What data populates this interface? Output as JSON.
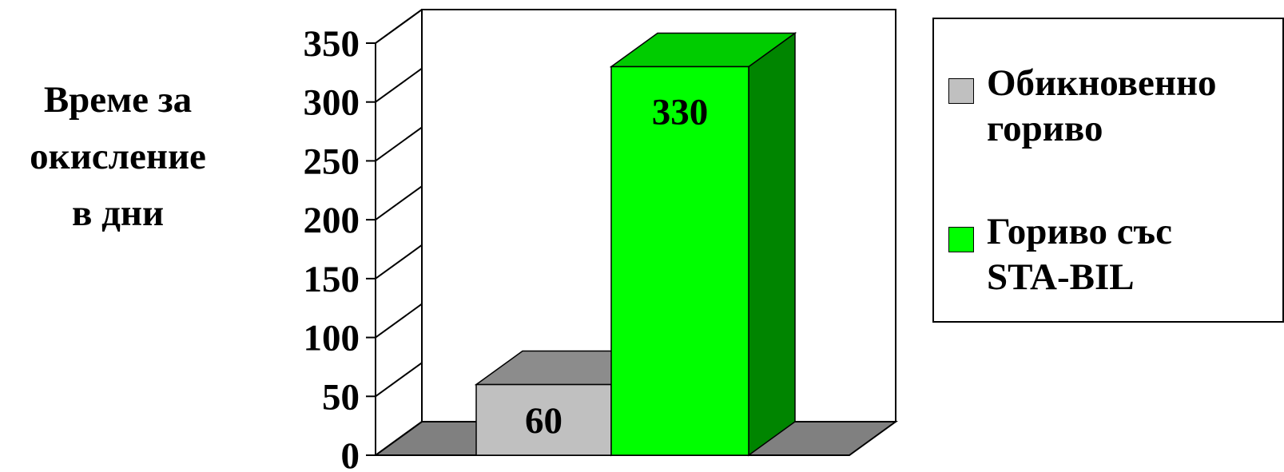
{
  "chart_data": {
    "type": "bar",
    "ylabel": "Време за\nокисление\nв дни",
    "xlabel": "",
    "title": "",
    "ylim": [
      0,
      350
    ],
    "yticks": [
      "0",
      "50",
      "100",
      "150",
      "200",
      "250",
      "300",
      "350"
    ],
    "series": [
      {
        "name": "Обикновенно\nгориво",
        "value": 60,
        "label": "60",
        "color": "#c0c0c0"
      },
      {
        "name": "Гориво със\nSTA-BIL",
        "value": 330,
        "label": "330",
        "color": "#00ff00"
      }
    ],
    "legend_placement": "right",
    "grid": false
  }
}
